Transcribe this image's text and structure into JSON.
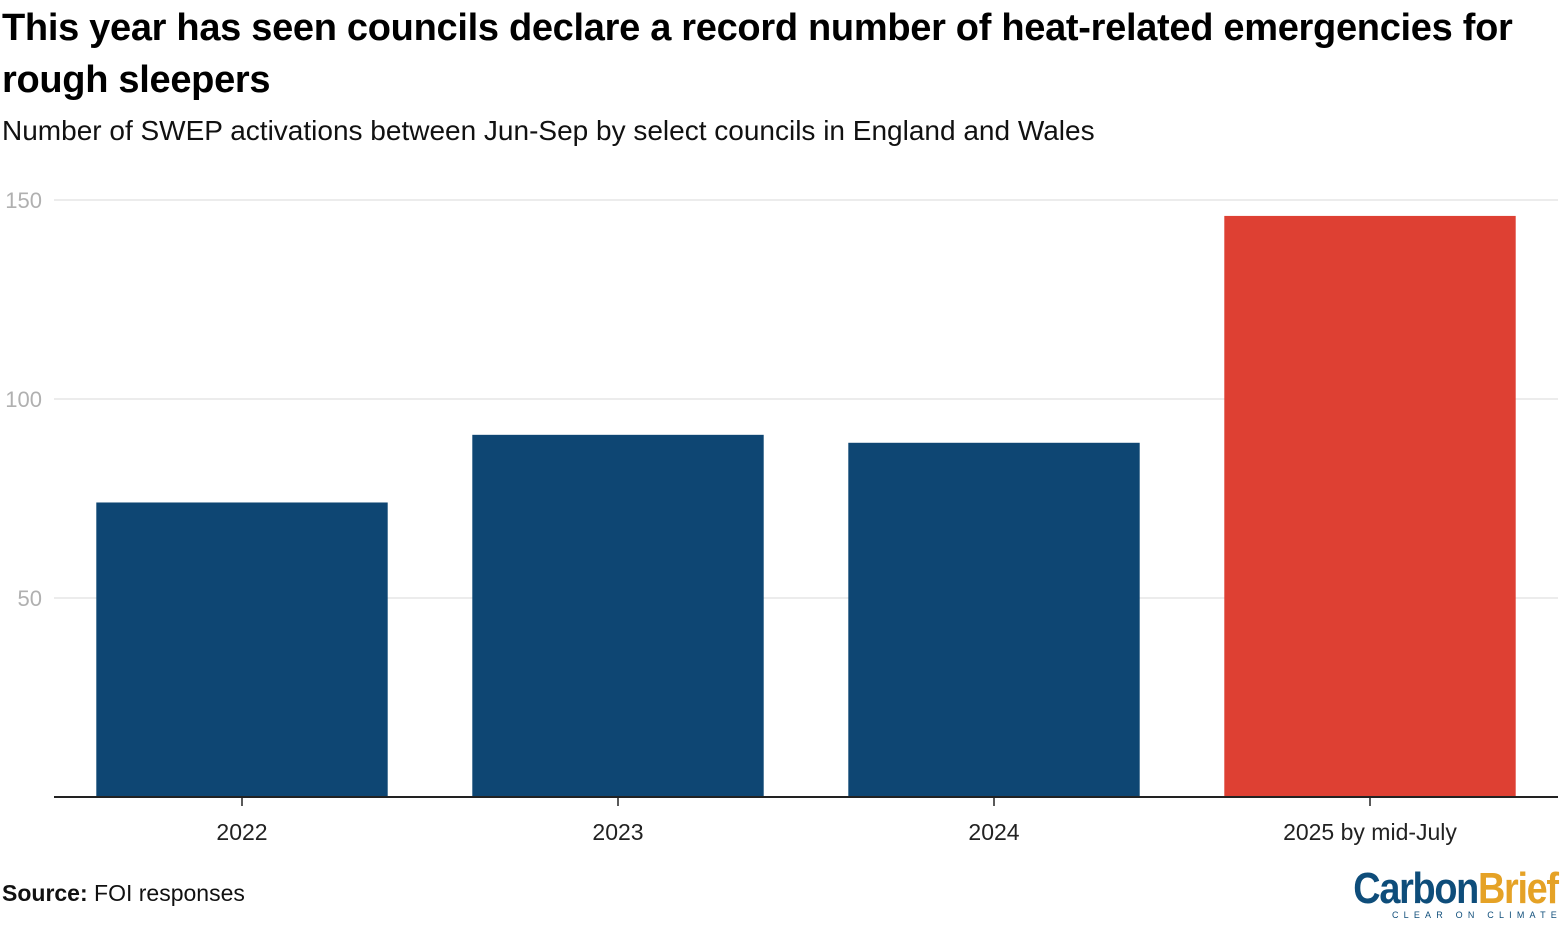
{
  "header": {
    "title": "This year has seen councils declare a record number of heat-related emergencies for rough sleepers",
    "subtitle": "Number of SWEP activations between Jun-Sep by select councils in England and Wales"
  },
  "footer": {
    "source_label": "Source:",
    "source_text": "FOI responses",
    "logo_carbon": "Carbon",
    "logo_brief": "Brief",
    "logo_tagline": "CLEAR ON CLIMATE"
  },
  "colors": {
    "default_bar": "#0e4673",
    "highlight_bar": "#de4033",
    "gridline": "#e6e6e6",
    "axis": "#222222",
    "tick_label": "#b0b0b0"
  },
  "chart_data": {
    "type": "bar",
    "title": "This year has seen councils declare a record number of heat-related emergencies for rough sleepers",
    "subtitle": "Number of SWEP activations between Jun-Sep by select councils in England and Wales",
    "xlabel": "",
    "ylabel": "",
    "categories": [
      "2022",
      "2023",
      "2024",
      "2025 by mid-July"
    ],
    "values": [
      74,
      91,
      89,
      146
    ],
    "highlight": [
      false,
      false,
      false,
      true
    ],
    "ylim": [
      0,
      150
    ],
    "yticks": [
      50,
      100,
      150
    ],
    "grid": true,
    "legend": "none"
  }
}
